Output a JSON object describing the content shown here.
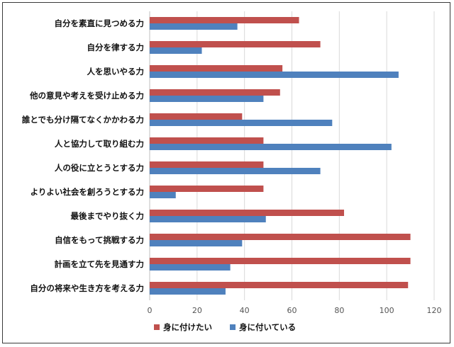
{
  "chart_data": {
    "type": "bar",
    "orientation": "horizontal",
    "categories": [
      "自分を素直に見つめる力",
      "自分を律する力",
      "人を思いやる力",
      "他の意見や考えを受け止める力",
      "誰とでも分け隔てなくかかわる力",
      "人と協力して取り組む力",
      "人の役に立とうとする力",
      "よりよい社会を創ろうとする力",
      "最後までやり抜く力",
      "自信をもって挑戦する力",
      "計画を立て先を見通す力",
      "自分の将来や生き方を考える力"
    ],
    "series": [
      {
        "name": "身に付けたい",
        "color": "#c0504d",
        "values": [
          63,
          72,
          56,
          55,
          39,
          48,
          48,
          48,
          82,
          110,
          110,
          109
        ]
      },
      {
        "name": "身に付いている",
        "color": "#4f81bd",
        "values": [
          37,
          22,
          105,
          48,
          77,
          102,
          72,
          11,
          49,
          39,
          34,
          32
        ]
      }
    ],
    "xlim": [
      0,
      120
    ],
    "xticks": [
      0,
      20,
      40,
      60,
      80,
      100,
      120
    ],
    "grid": true,
    "legend": "bottom",
    "title": "",
    "xlabel": "",
    "ylabel": ""
  }
}
